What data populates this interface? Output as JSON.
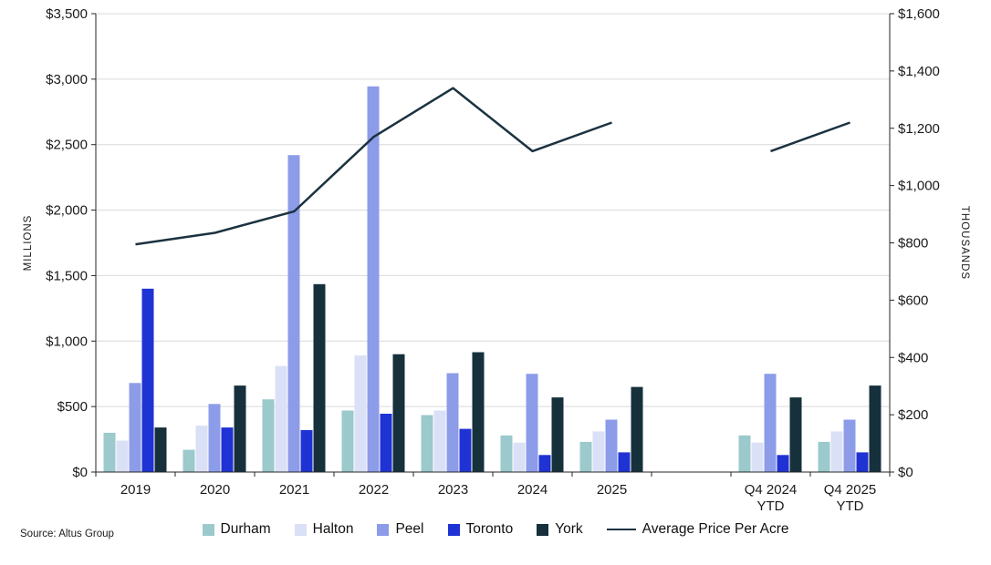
{
  "source_note": "Source: Altus Group",
  "chart_data": {
    "type": "bar",
    "subtype": "grouped-bars-with-line-overlay-dual-axis",
    "title": "",
    "categories": [
      "2019",
      "2020",
      "2021",
      "2022",
      "2023",
      "2024",
      "2025",
      "",
      "Q4 2024\nYTD",
      "Q4 2025\nYTD"
    ],
    "left_axis": {
      "title": "MILLIONS",
      "min": 0,
      "max": 3500,
      "tick_step": 500,
      "tick_labels": [
        "$0",
        "$500",
        "$1,000",
        "$1,500",
        "$2,000",
        "$2,500",
        "$3,000",
        "$3,500"
      ]
    },
    "right_axis": {
      "title": "THOUSANDS",
      "min": 0,
      "max": 1600,
      "tick_step": 200,
      "tick_labels": [
        "$0",
        "$200",
        "$400",
        "$600",
        "$800",
        "$1,000",
        "$1,200",
        "$1,400",
        "$1,600"
      ]
    },
    "grid": "horizontal",
    "legend_position": "bottom",
    "series": [
      {
        "name": "Durham",
        "type": "bar",
        "axis": "left",
        "color": "#9bc9cc",
        "values": [
          300,
          170,
          555,
          470,
          435,
          280,
          230,
          null,
          280,
          230
        ]
      },
      {
        "name": "Halton",
        "type": "bar",
        "axis": "left",
        "color": "#dae0f6",
        "values": [
          240,
          355,
          810,
          890,
          470,
          225,
          310,
          null,
          225,
          310
        ]
      },
      {
        "name": "Peel",
        "type": "bar",
        "axis": "left",
        "color": "#8c9ce8",
        "values": [
          680,
          520,
          2420,
          2945,
          755,
          750,
          400,
          null,
          750,
          400
        ]
      },
      {
        "name": "Toronto",
        "type": "bar",
        "axis": "left",
        "color": "#1f32d4",
        "values": [
          1400,
          340,
          320,
          445,
          330,
          130,
          150,
          null,
          130,
          150
        ]
      },
      {
        "name": "York",
        "type": "bar",
        "axis": "left",
        "color": "#16303c",
        "values": [
          340,
          660,
          1435,
          900,
          915,
          570,
          650,
          null,
          570,
          660
        ]
      },
      {
        "name": "Average Price Per Acre",
        "type": "line",
        "axis": "right",
        "color": "#1b3240",
        "values": [
          795,
          835,
          910,
          1170,
          1340,
          1120,
          1220,
          null,
          1120,
          1220
        ]
      }
    ]
  }
}
